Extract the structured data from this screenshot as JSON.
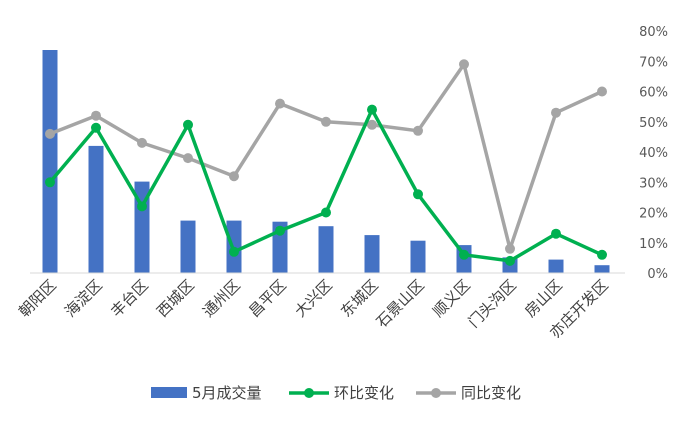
{
  "chart_data": {
    "type": "bar+line",
    "categories": [
      "朝阳区",
      "海淀区",
      "丰台区",
      "西城区",
      "通州区",
      "昌平区",
      "大兴区",
      "东城区",
      "石景山区",
      "顺义区",
      "门头沟区",
      "房山区",
      "亦庄开发区"
    ],
    "bar_series": {
      "name": "5月成交量",
      "color": "#4472C4",
      "values": [
        1.0,
        0.57,
        0.41,
        0.235,
        0.235,
        0.23,
        0.21,
        0.17,
        0.145,
        0.125,
        0.07,
        0.06,
        0.035
      ]
    },
    "line_series": [
      {
        "name": "环比变化",
        "color": "#00B050",
        "values": [
          30,
          48,
          22,
          49,
          7,
          14,
          20,
          54,
          26,
          6,
          4,
          13,
          6
        ]
      },
      {
        "name": "同比变化",
        "color": "#A5A5A5",
        "values": [
          46,
          52,
          43,
          38,
          32,
          56,
          50,
          49,
          47,
          69,
          8,
          53,
          60
        ]
      }
    ],
    "y2_ticks": [
      "0%",
      "10%",
      "20%",
      "30%",
      "40%",
      "50%",
      "60%",
      "70%",
      "80%"
    ],
    "y2lim": [
      0,
      80
    ],
    "legend_position": "bottom"
  }
}
